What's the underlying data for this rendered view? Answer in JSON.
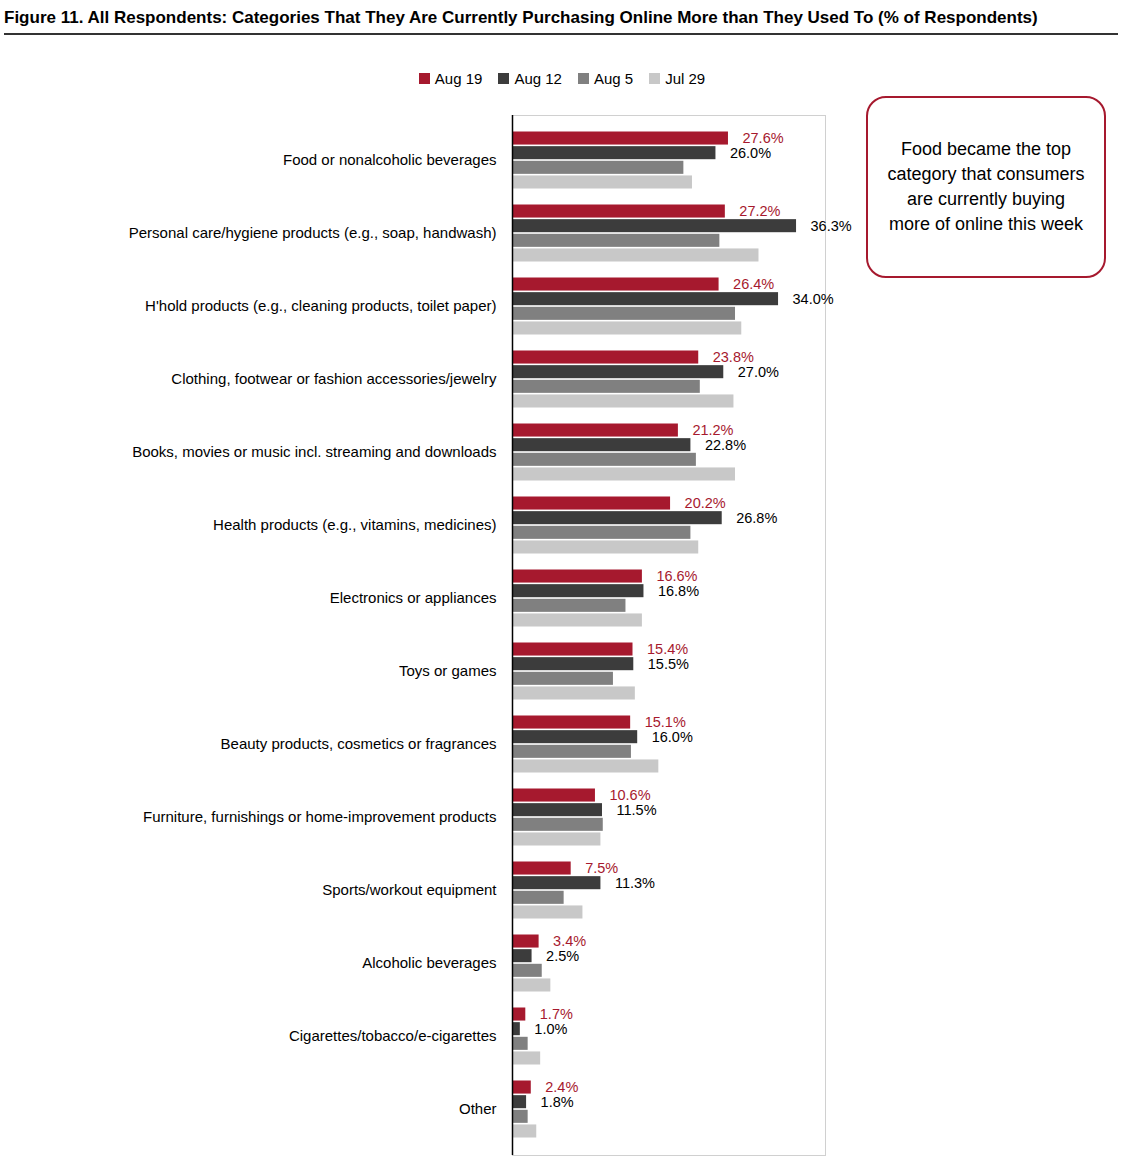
{
  "chart_data": {
    "type": "bar",
    "title": "Figure 11. All Respondents:  Categories That They Are Currently Purchasing Online More than They Used To (% of Respondents)",
    "orientation": "horizontal",
    "legend": "top",
    "tick_labels": "y",
    "grid": false,
    "xlim": [
      0,
      40
    ],
    "xticks": [],
    "annotations": [
      "Food became the top category that consumers are currently buying more of online this week"
    ],
    "categories": [
      "Food or nonalcoholic beverages",
      "Personal care/hygiene products (e.g., soap, handwash)",
      "H'hold products (e.g., cleaning products, toilet paper)",
      "Clothing, footwear or fashion accessories/jewelry",
      "Books, movies or music incl. streaming and downloads",
      "Health products (e.g., vitamins, medicines)",
      "Electronics or appliances",
      "Toys or games",
      "Beauty products, cosmetics or fragrances",
      "Furniture, furnishings or home-improvement products",
      "Sports/workout equipment",
      "Alcoholic beverages",
      "Cigarettes/tobacco/e-cigarettes",
      "Other"
    ],
    "series": [
      {
        "name": "Aug 19",
        "color": "#A6192E",
        "data_labels": true,
        "values": [
          27.6,
          27.2,
          26.4,
          23.8,
          21.2,
          20.2,
          16.6,
          15.4,
          15.1,
          10.6,
          7.5,
          3.4,
          1.7,
          2.4
        ],
        "value_labels": [
          "27.6%",
          "27.2%",
          "26.4%",
          "23.8%",
          "21.2%",
          "20.2%",
          "16.6%",
          "15.4%",
          "15.1%",
          "10.6%",
          "7.5%",
          "3.4%",
          "1.7%",
          "2.4%"
        ]
      },
      {
        "name": "Aug 12",
        "color": "#3C3C3C",
        "data_labels": true,
        "values": [
          26.0,
          36.3,
          34.0,
          27.0,
          22.8,
          26.8,
          16.8,
          15.5,
          16.0,
          11.5,
          11.3,
          2.5,
          1.0,
          1.8
        ],
        "value_labels": [
          "26.0%",
          "36.3%",
          "34.0%",
          "27.0%",
          "22.8%",
          "26.8%",
          "16.8%",
          "15.5%",
          "16.0%",
          "11.5%",
          "11.3%",
          "2.5%",
          "1.0%",
          "1.8%"
        ]
      },
      {
        "name": "Aug 5",
        "color": "#808080",
        "data_labels": false,
        "values": [
          21.9,
          26.5,
          28.5,
          24.0,
          23.5,
          22.8,
          14.5,
          12.9,
          15.2,
          11.6,
          6.6,
          3.8,
          2.0,
          2.0
        ]
      },
      {
        "name": "Jul 29",
        "color": "#C8C8C8",
        "data_labels": false,
        "values": [
          23.0,
          31.5,
          29.3,
          28.3,
          28.5,
          23.8,
          16.6,
          15.7,
          18.7,
          11.3,
          9.0,
          4.9,
          3.6,
          3.1
        ]
      }
    ]
  }
}
